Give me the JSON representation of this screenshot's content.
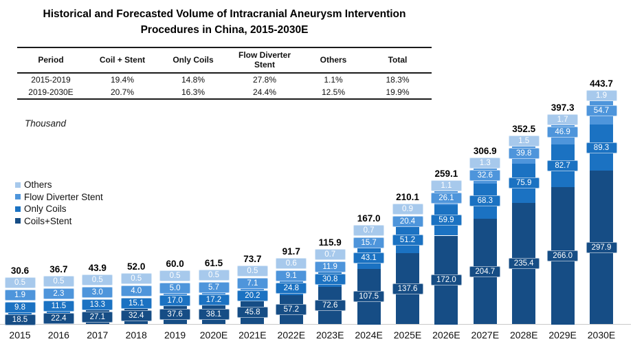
{
  "title": "Historical and Forecasted Volume of Intracranial Aneurysm Intervention Procedures in China, 2015-2030E",
  "table": {
    "headers": [
      "Period",
      "Coil + Stent",
      "Only Coils",
      "Flow Diverter Stent",
      "Others",
      "Total"
    ],
    "rows": [
      [
        "2015-2019",
        "19.4%",
        "14.8%",
        "27.8%",
        "1.1%",
        "18.3%"
      ],
      [
        "2019-2030E",
        "20.7%",
        "16.3%",
        "24.4%",
        "12.5%",
        "19.9%"
      ]
    ]
  },
  "chart_data": {
    "type": "bar",
    "stacked": true,
    "unit_label": "Thousand",
    "grid": false,
    "legend_position": "left-middle",
    "categories": [
      "2015",
      "2016",
      "2017",
      "2018",
      "2019",
      "2020E",
      "2021E",
      "2022E",
      "2023E",
      "2024E",
      "2025E",
      "2026E",
      "2027E",
      "2028E",
      "2029E",
      "2030E"
    ],
    "series": [
      {
        "name": "Coils+Stent",
        "color": "#164D85",
        "values": [
          18.5,
          22.4,
          27.1,
          32.4,
          37.6,
          38.1,
          45.8,
          57.2,
          72.6,
          107.5,
          137.6,
          172.0,
          204.7,
          235.4,
          266.0,
          297.9
        ]
      },
      {
        "name": "Only Coils",
        "color": "#1B72C2",
        "values": [
          9.8,
          11.5,
          13.3,
          15.1,
          17.0,
          17.2,
          20.2,
          24.8,
          30.8,
          43.1,
          51.2,
          59.9,
          68.3,
          75.9,
          82.7,
          89.3
        ]
      },
      {
        "name": "Flow Diverter Stent",
        "color": "#4E95DB",
        "values": [
          1.9,
          2.3,
          3.0,
          4.0,
          5.0,
          5.7,
          7.1,
          9.1,
          11.9,
          15.7,
          20.4,
          26.1,
          32.6,
          39.8,
          46.9,
          54.7
        ]
      },
      {
        "name": "Others",
        "color": "#A7C9EC",
        "values": [
          0.5,
          0.5,
          0.5,
          0.5,
          0.5,
          0.5,
          0.5,
          0.6,
          0.7,
          0.7,
          0.9,
          1.1,
          1.3,
          1.5,
          1.7,
          1.9
        ]
      }
    ],
    "totals": [
      30.6,
      36.7,
      43.9,
      52.0,
      60.0,
      61.5,
      73.7,
      91.7,
      115.9,
      167.0,
      210.1,
      259.1,
      306.9,
      352.5,
      397.3,
      443.7
    ],
    "value_axis_hidden": true
  }
}
